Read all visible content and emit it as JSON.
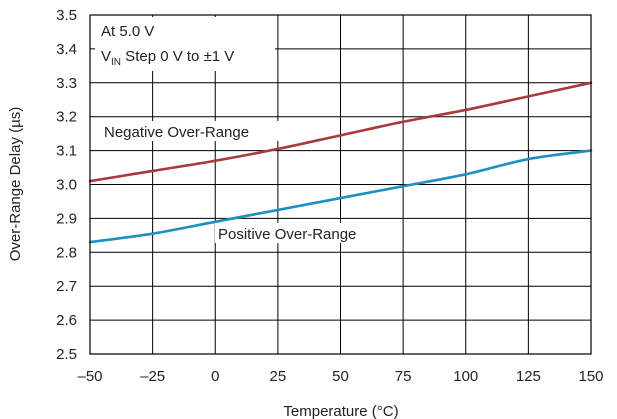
{
  "chart_data": {
    "type": "line",
    "xlabel": "Temperature (°C)",
    "ylabel": "Over-Range Delay (µs)",
    "xlim": [
      -50,
      150
    ],
    "ylim": [
      2.5,
      3.5
    ],
    "grid": true,
    "x_ticks": [
      -50,
      -25,
      0,
      25,
      50,
      75,
      100,
      125,
      150
    ],
    "y_ticks": [
      2.5,
      2.6,
      2.7,
      2.8,
      2.9,
      3.0,
      3.1,
      3.2,
      3.3,
      3.4,
      3.5
    ],
    "x_tick_labels": [
      "–50",
      "–25",
      "0",
      "25",
      "50",
      "75",
      "100",
      "125",
      "150"
    ],
    "y_tick_labels": [
      "2.5",
      "2.6",
      "2.7",
      "2.8",
      "2.9",
      "3.0",
      "3.1",
      "3.2",
      "3.3",
      "3.4",
      "3.5"
    ],
    "annotation": {
      "line1": "At 5.0 V",
      "line2_prefix": "V",
      "line2_sub": "IN",
      "line2_rest": " Step 0 V to ±1 V"
    },
    "series": [
      {
        "name": "Negative Over-Range",
        "color": "#a83a3a",
        "x": [
          -50,
          -25,
          0,
          25,
          50,
          75,
          100,
          125,
          150
        ],
        "y": [
          3.01,
          3.04,
          3.07,
          3.105,
          3.145,
          3.185,
          3.22,
          3.26,
          3.3
        ]
      },
      {
        "name": "Positive Over-Range",
        "color": "#1e8fc0",
        "x": [
          -50,
          -25,
          0,
          25,
          50,
          75,
          100,
          125,
          150
        ],
        "y": [
          2.83,
          2.855,
          2.89,
          2.925,
          2.96,
          2.995,
          3.03,
          3.075,
          3.1
        ]
      }
    ]
  }
}
